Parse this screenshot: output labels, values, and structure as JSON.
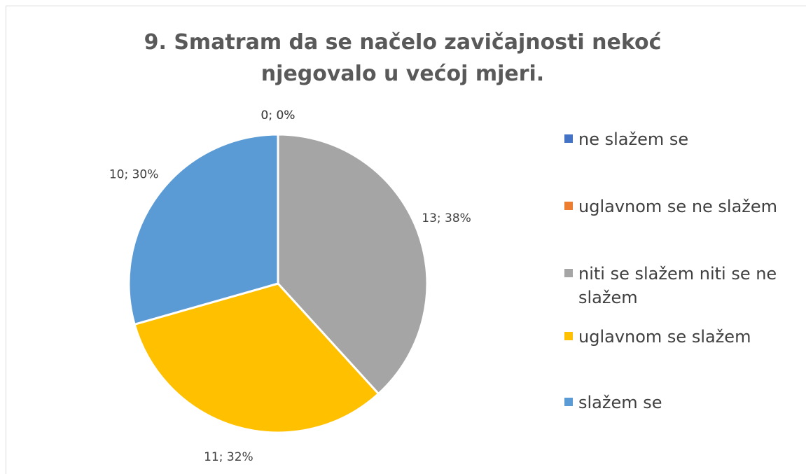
{
  "chart_data": {
    "type": "pie",
    "title": "9. Smatram da se načelo zavičajnosti nekoć njegovalo u većoj mjeri.",
    "categories": [
      "ne slažem se",
      "uglavnom se ne slažem",
      "niti se slažem niti se ne slažem",
      "uglavnom se slažem",
      "slažem se"
    ],
    "values": [
      0,
      0,
      13,
      11,
      10
    ],
    "value_labels": [
      "0; 0%",
      "0; 0%",
      "13; 38%",
      "11; 32%",
      "10; 30%"
    ],
    "colors": [
      "#4472c4",
      "#ed7d31",
      "#a5a5a5",
      "#ffc000",
      "#5b9bd5"
    ],
    "legend": "right"
  }
}
